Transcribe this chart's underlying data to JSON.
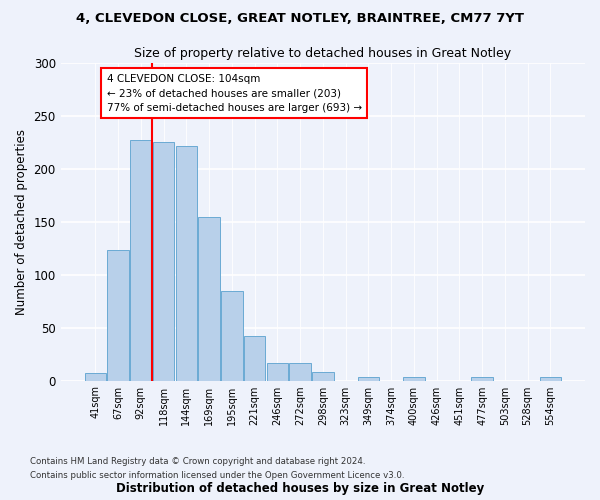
{
  "title1": "4, CLEVEDON CLOSE, GREAT NOTLEY, BRAINTREE, CM77 7YT",
  "title2": "Size of property relative to detached houses in Great Notley",
  "xlabel": "Distribution of detached houses by size in Great Notley",
  "ylabel": "Number of detached properties",
  "bin_labels": [
    "41sqm",
    "67sqm",
    "92sqm",
    "118sqm",
    "144sqm",
    "169sqm",
    "195sqm",
    "221sqm",
    "246sqm",
    "272sqm",
    "298sqm",
    "323sqm",
    "349sqm",
    "374sqm",
    "400sqm",
    "426sqm",
    "451sqm",
    "477sqm",
    "503sqm",
    "528sqm",
    "554sqm"
  ],
  "bar_heights": [
    7,
    123,
    227,
    225,
    222,
    155,
    85,
    42,
    17,
    17,
    8,
    0,
    3,
    0,
    3,
    0,
    0,
    3,
    0,
    0,
    3
  ],
  "bar_color": "#b8d0ea",
  "bar_edge_color": "#6aaad4",
  "vline_x": 2.5,
  "vline_color": "red",
  "annotation_text": "4 CLEVEDON CLOSE: 104sqm\n← 23% of detached houses are smaller (203)\n77% of semi-detached houses are larger (693) →",
  "annotation_box_color": "white",
  "annotation_box_edge": "red",
  "ylim": [
    0,
    300
  ],
  "yticks": [
    0,
    50,
    100,
    150,
    200,
    250,
    300
  ],
  "footer1": "Contains HM Land Registry data © Crown copyright and database right 2024.",
  "footer2": "Contains public sector information licensed under the Open Government Licence v3.0.",
  "bg_color": "#eef2fb"
}
